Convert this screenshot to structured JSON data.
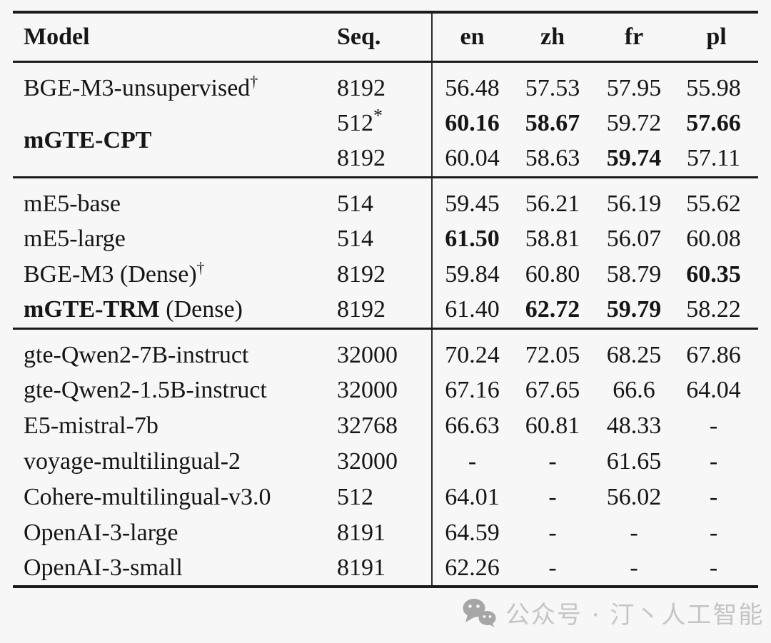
{
  "colors": {
    "background": "#f7f7f7",
    "text": "#161616",
    "rule": "#1b1b1b",
    "watermark_text": "#c5c5c5",
    "watermark_icon": "#a6a6a6"
  },
  "table": {
    "header": {
      "model": "Model",
      "seq": "Seq.",
      "langs": [
        "en",
        "zh",
        "fr",
        "pl"
      ]
    },
    "sections": [
      {
        "rows": [
          {
            "model": [
              [
                "BGE-M3-unsupervised",
                false
              ]
            ],
            "model_sup": "†",
            "seq": "8192",
            "seq_sup": "",
            "vals": [
              [
                "56.48",
                false
              ],
              [
                "57.53",
                false
              ],
              [
                "57.95",
                false
              ],
              [
                "55.98",
                false
              ]
            ]
          },
          {
            "model": [
              [
                "mGTE-CPT",
                true
              ]
            ],
            "model_sup": "",
            "rowspan": 2,
            "seq": "512",
            "seq_sup": "*",
            "vals": [
              [
                "60.16",
                true
              ],
              [
                "58.67",
                true
              ],
              [
                "59.72",
                false
              ],
              [
                "57.66",
                true
              ]
            ]
          },
          {
            "model": null,
            "seq": "8192",
            "seq_sup": "",
            "vals": [
              [
                "60.04",
                false
              ],
              [
                "58.63",
                false
              ],
              [
                "59.74",
                true
              ],
              [
                "57.11",
                false
              ]
            ]
          }
        ]
      },
      {
        "rows": [
          {
            "model": [
              [
                "mE5-base",
                false
              ]
            ],
            "model_sup": "",
            "seq": "514",
            "seq_sup": "",
            "vals": [
              [
                "59.45",
                false
              ],
              [
                "56.21",
                false
              ],
              [
                "56.19",
                false
              ],
              [
                "55.62",
                false
              ]
            ]
          },
          {
            "model": [
              [
                "mE5-large",
                false
              ]
            ],
            "model_sup": "",
            "seq": "514",
            "seq_sup": "",
            "vals": [
              [
                "61.50",
                true
              ],
              [
                "58.81",
                false
              ],
              [
                "56.07",
                false
              ],
              [
                "60.08",
                false
              ]
            ]
          },
          {
            "model": [
              [
                "BGE-M3 (Dense)",
                false
              ]
            ],
            "model_sup": "†",
            "seq": "8192",
            "seq_sup": "",
            "vals": [
              [
                "59.84",
                false
              ],
              [
                "60.80",
                false
              ],
              [
                "58.79",
                false
              ],
              [
                "60.35",
                true
              ]
            ]
          },
          {
            "model": [
              [
                "mGTE-TRM",
                true
              ],
              [
                " (Dense)",
                false
              ]
            ],
            "model_sup": "",
            "seq": "8192",
            "seq_sup": "",
            "vals": [
              [
                "61.40",
                false
              ],
              [
                "62.72",
                true
              ],
              [
                "59.79",
                true
              ],
              [
                "58.22",
                false
              ]
            ]
          }
        ]
      },
      {
        "rows": [
          {
            "model": [
              [
                "gte-Qwen2-7B-instruct",
                false
              ]
            ],
            "model_sup": "",
            "seq": "32000",
            "seq_sup": "",
            "vals": [
              [
                "70.24",
                false
              ],
              [
                "72.05",
                false
              ],
              [
                "68.25",
                false
              ],
              [
                "67.86",
                false
              ]
            ]
          },
          {
            "model": [
              [
                "gte-Qwen2-1.5B-instruct",
                false
              ]
            ],
            "model_sup": "",
            "seq": "32000",
            "seq_sup": "",
            "vals": [
              [
                "67.16",
                false
              ],
              [
                "67.65",
                false
              ],
              [
                "66.6",
                false
              ],
              [
                "64.04",
                false
              ]
            ]
          },
          {
            "model": [
              [
                "E5-mistral-7b",
                false
              ]
            ],
            "model_sup": "",
            "seq": "32768",
            "seq_sup": "",
            "vals": [
              [
                "66.63",
                false
              ],
              [
                "60.81",
                false
              ],
              [
                "48.33",
                false
              ],
              [
                "-",
                false
              ]
            ]
          },
          {
            "model": [
              [
                "voyage-multilingual-2",
                false
              ]
            ],
            "model_sup": "",
            "seq": "32000",
            "seq_sup": "",
            "vals": [
              [
                "-",
                false
              ],
              [
                "-",
                false
              ],
              [
                "61.65",
                false
              ],
              [
                "-",
                false
              ]
            ]
          },
          {
            "model": [
              [
                "Cohere-multilingual-v3.0",
                false
              ]
            ],
            "model_sup": "",
            "seq": "512",
            "seq_sup": "",
            "vals": [
              [
                "64.01",
                false
              ],
              [
                "-",
                false
              ],
              [
                "56.02",
                false
              ],
              [
                "-",
                false
              ]
            ]
          },
          {
            "model": [
              [
                "OpenAI-3-large",
                false
              ]
            ],
            "model_sup": "",
            "seq": "8191",
            "seq_sup": "",
            "vals": [
              [
                "64.59",
                false
              ],
              [
                "-",
                false
              ],
              [
                "-",
                false
              ],
              [
                "-",
                false
              ]
            ]
          },
          {
            "model": [
              [
                "OpenAI-3-small",
                false
              ]
            ],
            "model_sup": "",
            "seq": "8191",
            "seq_sup": "",
            "vals": [
              [
                "62.26",
                false
              ],
              [
                "-",
                false
              ],
              [
                "-",
                false
              ],
              [
                "-",
                false
              ]
            ]
          }
        ]
      }
    ]
  },
  "watermark": {
    "icon": "wechat-icon",
    "text": "公众号 · 汀丶人工智能"
  }
}
